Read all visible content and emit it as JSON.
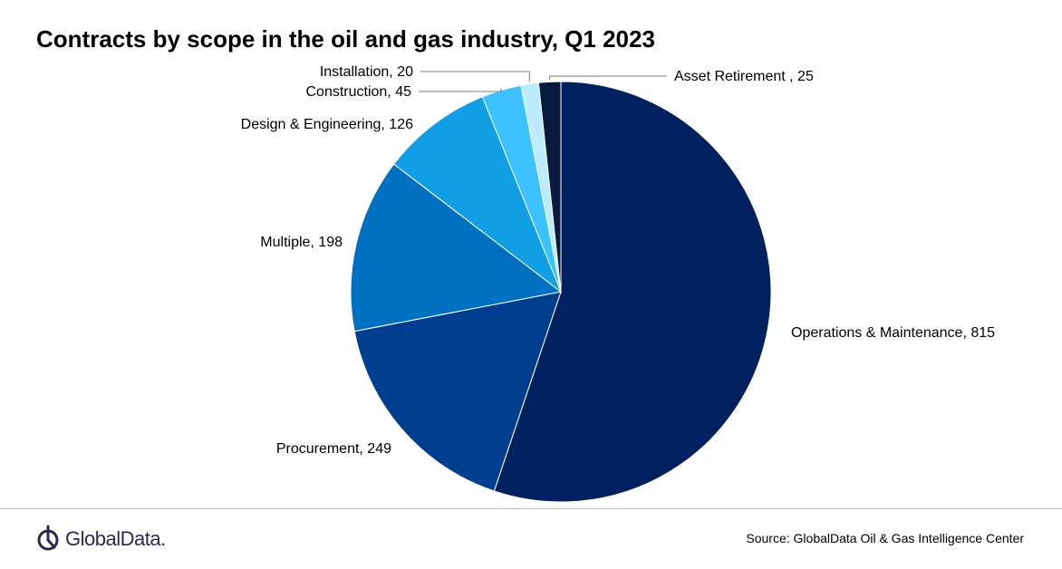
{
  "chart_data": {
    "type": "pie",
    "title": "Contracts by scope in the oil and gas industry, Q1 2023",
    "slices": [
      {
        "label": "Operations & Maintenance",
        "value": 815,
        "display": "Operations & Maintenance, 815",
        "color": "#002060"
      },
      {
        "label": "Procurement",
        "value": 249,
        "display": "Procurement, 249",
        "color": "#003F8F"
      },
      {
        "label": "Multiple",
        "value": 198,
        "display": "Multiple, 198",
        "color": "#0070C0"
      },
      {
        "label": "Design & Engineering",
        "value": 126,
        "display": "Design & Engineering, 126",
        "color": "#109EE4"
      },
      {
        "label": "Construction",
        "value": 45,
        "display": "Construction, 45",
        "color": "#3CC3FF"
      },
      {
        "label": "Installation",
        "value": 20,
        "display": "Installation, 20",
        "color": "#BDEBFF"
      },
      {
        "label": "Asset Retirement",
        "value": 25,
        "display": "Asset Retirement , 25",
        "color": "#071A3D"
      }
    ],
    "legend": "none",
    "data_labels": "outside"
  },
  "footer": {
    "logo_text": "GlobalData.",
    "source": "Source:  GlobalData Oil & Gas Intelligence Center"
  }
}
